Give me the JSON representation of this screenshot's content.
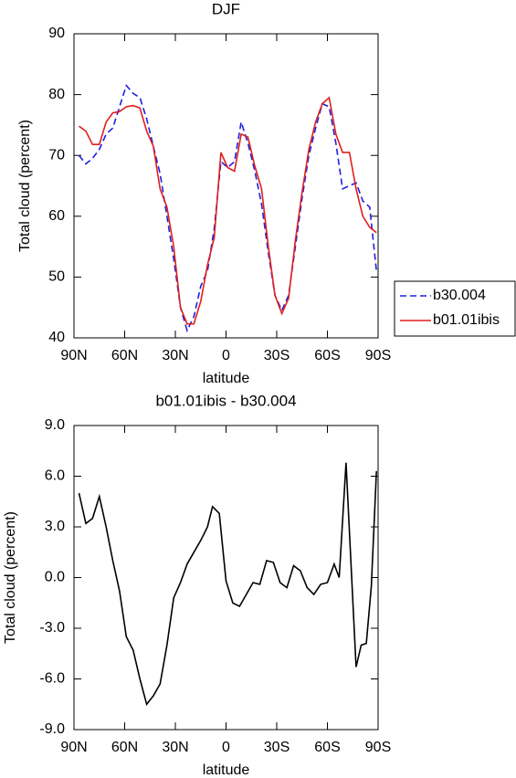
{
  "chart_data": [
    {
      "type": "line",
      "title": "DJF",
      "xlabel": "latitude",
      "ylabel": "Total cloud (percent)",
      "x": [
        87,
        83,
        79,
        75,
        71,
        67,
        63,
        59,
        55,
        51,
        47,
        43,
        39,
        35,
        31,
        27,
        23,
        19,
        15,
        11,
        7,
        3,
        -1,
        -5,
        -9,
        -13,
        -17,
        -21,
        -25,
        -29,
        -33,
        -37,
        -41,
        -45,
        -49,
        -53,
        -57,
        -61,
        -65,
        -69,
        -73,
        -77,
        -81,
        -85,
        -89
      ],
      "series": [
        {
          "name": "b30.004",
          "color": "#1f1fe0",
          "linestyle": "dashed",
          "values": [
            70,
            68.6,
            69.5,
            71,
            73.5,
            74.5,
            78,
            81.5,
            80.2,
            79.5,
            76,
            71.5,
            67,
            60,
            53,
            45,
            41.2,
            43.5,
            48.5,
            51,
            58,
            69,
            68,
            69,
            75.5,
            72,
            67.5,
            62,
            54,
            47,
            44.5,
            47,
            55,
            63,
            70,
            74.5,
            78.5,
            78,
            72,
            64.5,
            65,
            65.5,
            62.5,
            61.5,
            51
          ]
        },
        {
          "name": "b01.01ibis",
          "color": "#e01f1f",
          "linestyle": "solid",
          "values": [
            74.8,
            74,
            71.8,
            71.8,
            75.5,
            77,
            77.2,
            78,
            78.2,
            77.8,
            74,
            71.5,
            64.5,
            61.5,
            55,
            45,
            42.3,
            42.3,
            46,
            52,
            56.5,
            70.5,
            68,
            67.4,
            73.5,
            73,
            68.3,
            64.5,
            55,
            47,
            44,
            46.5,
            56,
            64,
            71,
            75.5,
            78.5,
            79.5,
            73.5,
            70.5,
            70.5,
            64.5,
            60,
            58.2,
            57.3
          ]
        }
      ],
      "xlim": [
        90,
        -90
      ],
      "xticks": [
        {
          "value": 90,
          "label": "90N"
        },
        {
          "value": 60,
          "label": "60N"
        },
        {
          "value": 30,
          "label": "30N"
        },
        0,
        {
          "value": -30,
          "label": "30S"
        },
        {
          "value": -60,
          "label": "60S"
        },
        {
          "value": -90,
          "label": "90S"
        }
      ],
      "ylim": [
        40,
        90
      ],
      "yticks": [
        40,
        50,
        60,
        70,
        80,
        90
      ],
      "legend": "right"
    },
    {
      "type": "line",
      "title": "b01.01ibis - b30.004",
      "xlabel": "latitude",
      "ylabel": "Total cloud (percent)",
      "x": [
        87,
        83,
        79,
        75,
        71,
        67,
        63,
        59,
        55,
        51,
        47,
        43,
        39,
        35,
        31,
        27,
        23,
        19,
        15,
        11,
        8,
        4,
        0,
        -4,
        -8,
        -12,
        -16,
        -20,
        -24,
        -28,
        -32,
        -36,
        -40,
        -44,
        -48,
        -52,
        -56,
        -60,
        -64,
        -67,
        -71,
        -77,
        -80,
        -83,
        -86,
        -89
      ],
      "series": [
        {
          "color": "#000000",
          "linestyle": "solid",
          "values": [
            5.0,
            3.2,
            3.5,
            4.8,
            3.0,
            1.0,
            -0.8,
            -3.5,
            -4.3,
            -6.0,
            -7.5,
            -7.0,
            -6.3,
            -4.0,
            -1.2,
            -0.3,
            0.8,
            1.5,
            2.2,
            3.0,
            4.2,
            3.8,
            -0.2,
            -1.5,
            -1.7,
            -1.0,
            -0.3,
            -0.4,
            1.0,
            0.9,
            -0.3,
            -0.6,
            0.7,
            0.4,
            -0.6,
            -1.0,
            -0.4,
            -0.3,
            0.8,
            0.0,
            6.8,
            -5.3,
            -4.0,
            -3.9,
            -0.5,
            6.3
          ]
        }
      ],
      "xlim": [
        90,
        -90
      ],
      "xticks": [
        {
          "value": 90,
          "label": "90N"
        },
        {
          "value": 60,
          "label": "60N"
        },
        {
          "value": 30,
          "label": "30N"
        },
        0,
        {
          "value": -30,
          "label": "30S"
        },
        {
          "value": -60,
          "label": "60S"
        },
        {
          "value": -90,
          "label": "90S"
        }
      ],
      "ylim": [
        -9,
        9
      ],
      "yticks": [
        {
          "value": -9,
          "label": "-9.0"
        },
        {
          "value": -6,
          "label": "-6.0"
        },
        {
          "value": -3,
          "label": "-3.0"
        },
        {
          "value": 0,
          "label": "0.0"
        },
        {
          "value": 3,
          "label": "3.0"
        },
        {
          "value": 6,
          "label": "6.0"
        },
        {
          "value": 9,
          "label": "9.0"
        }
      ]
    }
  ]
}
